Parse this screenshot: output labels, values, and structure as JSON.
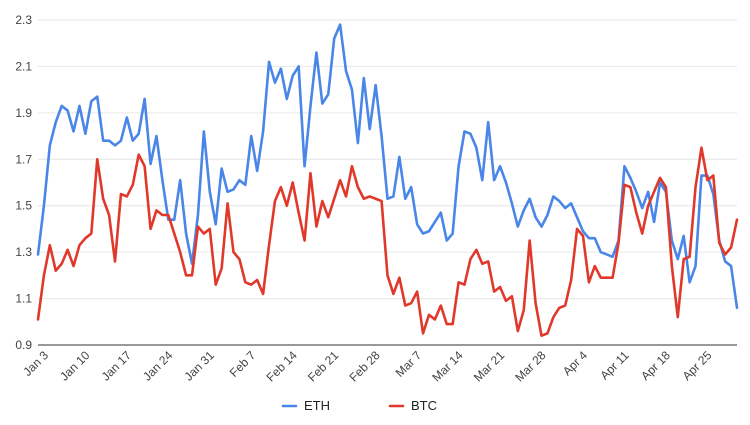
{
  "chart_data": {
    "type": "line",
    "title": "",
    "xlabel": "",
    "ylabel": "",
    "ylim": [
      0.9,
      2.3
    ],
    "yticks": [
      "0.9",
      "1.1",
      "1.3",
      "1.5",
      "1.7",
      "1.9",
      "2.1",
      "2.3"
    ],
    "xlim_days": [
      0,
      118
    ],
    "xticks": [
      {
        "label": "Jan 3",
        "day": 1
      },
      {
        "label": "Jan 10",
        "day": 8
      },
      {
        "label": "Jan 17",
        "day": 15
      },
      {
        "label": "Jan 24",
        "day": 22
      },
      {
        "label": "Jan 31",
        "day": 29
      },
      {
        "label": "Feb 7",
        "day": 36
      },
      {
        "label": "Feb 14",
        "day": 43
      },
      {
        "label": "Feb 21",
        "day": 50
      },
      {
        "label": "Feb 28",
        "day": 57
      },
      {
        "label": "Mar 7",
        "day": 64
      },
      {
        "label": "Mar 14",
        "day": 71
      },
      {
        "label": "Mar 21",
        "day": 78
      },
      {
        "label": "Mar 28",
        "day": 85
      },
      {
        "label": "Apr 4",
        "day": 92
      },
      {
        "label": "Apr 11",
        "day": 99
      },
      {
        "label": "Apr 18",
        "day": 106
      },
      {
        "label": "Apr 25",
        "day": 113
      }
    ],
    "grid": true,
    "legend_position": "bottom",
    "series": [
      {
        "name": "ETH",
        "color": "#4a86e8",
        "points": [
          [
            0,
            1.29
          ],
          [
            1,
            1.5
          ],
          [
            2,
            1.76
          ],
          [
            3,
            1.86
          ],
          [
            4,
            1.93
          ],
          [
            5,
            1.91
          ],
          [
            6,
            1.82
          ],
          [
            7,
            1.93
          ],
          [
            8,
            1.81
          ],
          [
            9,
            1.95
          ],
          [
            10,
            1.97
          ],
          [
            11,
            1.78
          ],
          [
            12,
            1.78
          ],
          [
            13,
            1.76
          ],
          [
            14,
            1.78
          ],
          [
            15,
            1.88
          ],
          [
            16,
            1.78
          ],
          [
            17,
            1.81
          ],
          [
            18,
            1.96
          ],
          [
            19,
            1.68
          ],
          [
            20,
            1.8
          ],
          [
            21,
            1.61
          ],
          [
            22,
            1.44
          ],
          [
            23,
            1.44
          ],
          [
            24,
            1.61
          ],
          [
            25,
            1.38
          ],
          [
            26,
            1.25
          ],
          [
            27,
            1.46
          ],
          [
            28,
            1.82
          ],
          [
            29,
            1.56
          ],
          [
            30,
            1.42
          ],
          [
            31,
            1.66
          ],
          [
            32,
            1.56
          ],
          [
            33,
            1.57
          ],
          [
            34,
            1.61
          ],
          [
            35,
            1.59
          ],
          [
            36,
            1.8
          ],
          [
            37,
            1.65
          ],
          [
            38,
            1.82
          ],
          [
            39,
            2.12
          ],
          [
            40,
            2.03
          ],
          [
            41,
            2.09
          ],
          [
            42,
            1.96
          ],
          [
            43,
            2.06
          ],
          [
            44,
            2.1
          ],
          [
            45,
            1.67
          ],
          [
            46,
            1.93
          ],
          [
            47,
            2.16
          ],
          [
            48,
            1.94
          ],
          [
            49,
            1.98
          ],
          [
            50,
            2.22
          ],
          [
            51,
            2.28
          ],
          [
            52,
            2.08
          ],
          [
            53,
            2.0
          ],
          [
            54,
            1.77
          ],
          [
            55,
            2.05
          ],
          [
            56,
            1.83
          ],
          [
            57,
            2.02
          ],
          [
            58,
            1.8
          ],
          [
            59,
            1.53
          ],
          [
            60,
            1.54
          ],
          [
            61,
            1.71
          ],
          [
            62,
            1.53
          ],
          [
            63,
            1.58
          ],
          [
            64,
            1.42
          ],
          [
            65,
            1.38
          ],
          [
            66,
            1.39
          ],
          [
            67,
            1.43
          ],
          [
            68,
            1.47
          ],
          [
            69,
            1.35
          ],
          [
            70,
            1.38
          ],
          [
            71,
            1.67
          ],
          [
            72,
            1.82
          ],
          [
            73,
            1.81
          ],
          [
            74,
            1.75
          ],
          [
            75,
            1.61
          ],
          [
            76,
            1.86
          ],
          [
            77,
            1.61
          ],
          [
            78,
            1.67
          ],
          [
            79,
            1.6
          ],
          [
            80,
            1.51
          ],
          [
            81,
            1.41
          ],
          [
            82,
            1.48
          ],
          [
            83,
            1.53
          ],
          [
            84,
            1.45
          ],
          [
            85,
            1.41
          ],
          [
            86,
            1.46
          ],
          [
            87,
            1.54
          ],
          [
            88,
            1.52
          ],
          [
            89,
            1.49
          ],
          [
            90,
            1.51
          ],
          [
            91,
            1.45
          ],
          [
            92,
            1.39
          ],
          [
            93,
            1.36
          ],
          [
            94,
            1.36
          ],
          [
            95,
            1.3
          ],
          [
            96,
            1.29
          ],
          [
            97,
            1.28
          ],
          [
            98,
            1.35
          ],
          [
            99,
            1.67
          ],
          [
            100,
            1.62
          ],
          [
            101,
            1.56
          ],
          [
            102,
            1.49
          ],
          [
            103,
            1.56
          ],
          [
            104,
            1.43
          ],
          [
            105,
            1.6
          ],
          [
            106,
            1.56
          ],
          [
            107,
            1.35
          ],
          [
            108,
            1.27
          ],
          [
            109,
            1.37
          ],
          [
            110,
            1.17
          ],
          [
            111,
            1.24
          ],
          [
            112,
            1.63
          ],
          [
            113,
            1.63
          ],
          [
            114,
            1.55
          ],
          [
            115,
            1.35
          ],
          [
            116,
            1.26
          ],
          [
            117,
            1.24
          ],
          [
            118,
            1.06
          ]
        ]
      },
      {
        "name": "BTC",
        "color": "#e0392b",
        "points": [
          [
            0,
            1.01
          ],
          [
            1,
            1.2
          ],
          [
            2,
            1.33
          ],
          [
            3,
            1.22
          ],
          [
            4,
            1.25
          ],
          [
            5,
            1.31
          ],
          [
            6,
            1.24
          ],
          [
            7,
            1.33
          ],
          [
            8,
            1.36
          ],
          [
            9,
            1.38
          ],
          [
            10,
            1.7
          ],
          [
            11,
            1.53
          ],
          [
            12,
            1.46
          ],
          [
            13,
            1.26
          ],
          [
            14,
            1.55
          ],
          [
            15,
            1.54
          ],
          [
            16,
            1.59
          ],
          [
            17,
            1.72
          ],
          [
            18,
            1.67
          ],
          [
            19,
            1.4
          ],
          [
            20,
            1.48
          ],
          [
            21,
            1.46
          ],
          [
            22,
            1.46
          ],
          [
            23,
            1.38
          ],
          [
            24,
            1.3
          ],
          [
            25,
            1.2
          ],
          [
            26,
            1.2
          ],
          [
            27,
            1.41
          ],
          [
            28,
            1.38
          ],
          [
            29,
            1.4
          ],
          [
            30,
            1.16
          ],
          [
            31,
            1.23
          ],
          [
            32,
            1.51
          ],
          [
            33,
            1.3
          ],
          [
            34,
            1.27
          ],
          [
            35,
            1.17
          ],
          [
            36,
            1.16
          ],
          [
            37,
            1.18
          ],
          [
            38,
            1.12
          ],
          [
            39,
            1.33
          ],
          [
            40,
            1.52
          ],
          [
            41,
            1.58
          ],
          [
            42,
            1.5
          ],
          [
            43,
            1.6
          ],
          [
            44,
            1.47
          ],
          [
            45,
            1.35
          ],
          [
            46,
            1.64
          ],
          [
            47,
            1.41
          ],
          [
            48,
            1.52
          ],
          [
            49,
            1.45
          ],
          [
            50,
            1.53
          ],
          [
            51,
            1.61
          ],
          [
            52,
            1.54
          ],
          [
            53,
            1.67
          ],
          [
            54,
            1.58
          ],
          [
            55,
            1.53
          ],
          [
            56,
            1.54
          ],
          [
            57,
            1.53
          ],
          [
            58,
            1.52
          ],
          [
            59,
            1.2
          ],
          [
            60,
            1.12
          ],
          [
            61,
            1.19
          ],
          [
            62,
            1.07
          ],
          [
            63,
            1.08
          ],
          [
            64,
            1.13
          ],
          [
            65,
            0.95
          ],
          [
            66,
            1.03
          ],
          [
            67,
            1.01
          ],
          [
            68,
            1.07
          ],
          [
            69,
            0.99
          ],
          [
            70,
            0.99
          ],
          [
            71,
            1.17
          ],
          [
            72,
            1.16
          ],
          [
            73,
            1.27
          ],
          [
            74,
            1.31
          ],
          [
            75,
            1.25
          ],
          [
            76,
            1.26
          ],
          [
            77,
            1.13
          ],
          [
            78,
            1.15
          ],
          [
            79,
            1.09
          ],
          [
            80,
            1.11
          ],
          [
            81,
            0.96
          ],
          [
            82,
            1.05
          ],
          [
            83,
            1.35
          ],
          [
            84,
            1.08
          ],
          [
            85,
            0.94
          ],
          [
            86,
            0.95
          ],
          [
            87,
            1.02
          ],
          [
            88,
            1.06
          ],
          [
            89,
            1.07
          ],
          [
            90,
            1.18
          ],
          [
            91,
            1.4
          ],
          [
            92,
            1.37
          ],
          [
            93,
            1.17
          ],
          [
            94,
            1.24
          ],
          [
            95,
            1.19
          ],
          [
            96,
            1.19
          ],
          [
            97,
            1.19
          ],
          [
            98,
            1.34
          ],
          [
            99,
            1.59
          ],
          [
            100,
            1.58
          ],
          [
            101,
            1.47
          ],
          [
            102,
            1.38
          ],
          [
            103,
            1.5
          ],
          [
            104,
            1.56
          ],
          [
            105,
            1.62
          ],
          [
            106,
            1.58
          ],
          [
            107,
            1.24
          ],
          [
            108,
            1.02
          ],
          [
            109,
            1.27
          ],
          [
            110,
            1.28
          ],
          [
            111,
            1.58
          ],
          [
            112,
            1.75
          ],
          [
            113,
            1.61
          ],
          [
            114,
            1.63
          ],
          [
            115,
            1.34
          ],
          [
            116,
            1.29
          ],
          [
            117,
            1.32
          ],
          [
            118,
            1.44
          ]
        ]
      }
    ]
  }
}
